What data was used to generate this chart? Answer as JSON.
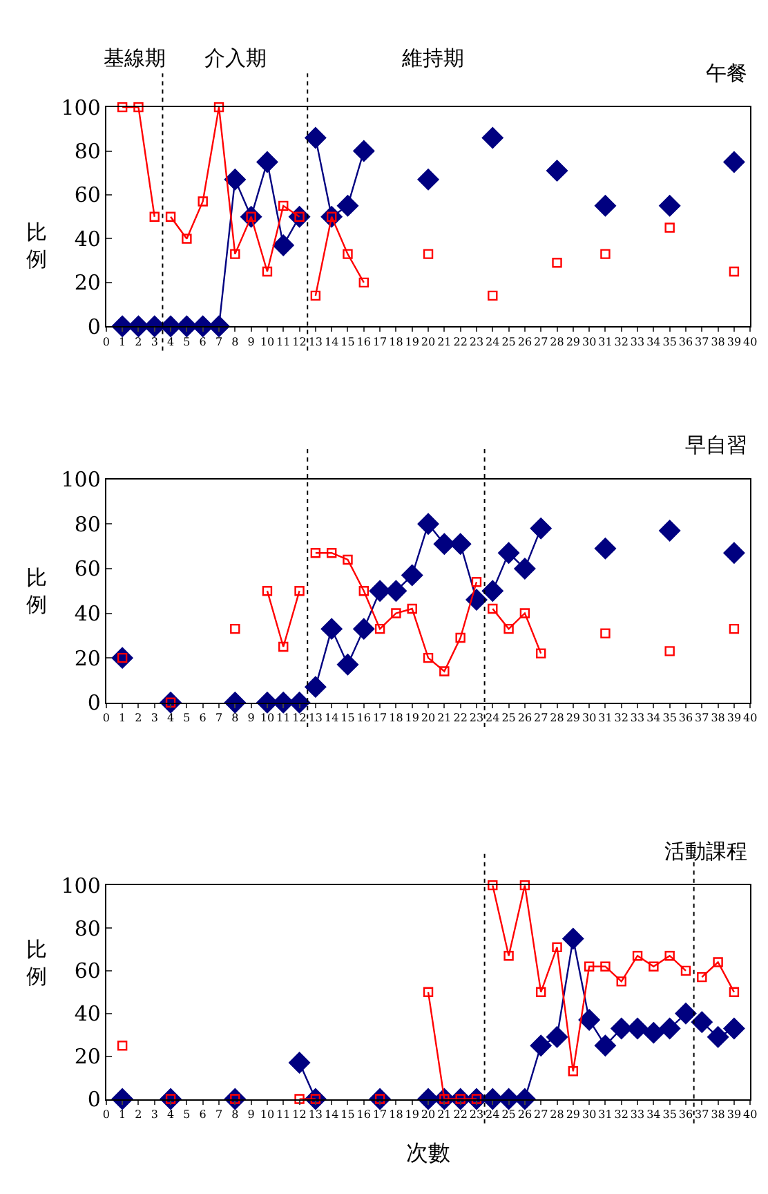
{
  "chart_data": [
    {
      "type": "line",
      "title": "午餐",
      "ylabel": "比例",
      "annotations": [
        "基線期",
        "介入期",
        "維持期"
      ],
      "xlim": [
        0,
        40
      ],
      "xticks": [
        0,
        1,
        2,
        3,
        4,
        5,
        6,
        7,
        8,
        9,
        10,
        11,
        12,
        13,
        14,
        15,
        16,
        17,
        18,
        19,
        20,
        21,
        22,
        23,
        24,
        25,
        26,
        27,
        28,
        29,
        30,
        31,
        32,
        33,
        34,
        35,
        36,
        37,
        38,
        39,
        40
      ],
      "ylim": [
        0,
        100
      ],
      "yticks": [
        0,
        20,
        40,
        60,
        80,
        100
      ],
      "line_style": "solid",
      "ref_lines": [
        {
          "axis": "x",
          "value": 3.5,
          "color": "#000000",
          "line_style": "dotted"
        },
        {
          "axis": "x",
          "value": 12.5,
          "color": "#000000",
          "line_style": "dotted"
        }
      ],
      "series": [
        {
          "color": "#ff0000",
          "marker": "square",
          "x": [
            1,
            2,
            3
          ],
          "values": [
            100,
            100,
            50
          ]
        },
        {
          "color": "#ff0000",
          "marker": "square",
          "x": [
            4,
            5,
            6,
            7,
            8,
            9,
            10,
            11,
            12
          ],
          "values": [
            50,
            40,
            57,
            100,
            33,
            50,
            25,
            55,
            50
          ]
        },
        {
          "color": "#ff0000",
          "marker": "square",
          "x": [
            13,
            14,
            15,
            16,
            17,
            18,
            19,
            20,
            21,
            22,
            23,
            24,
            25,
            26,
            27,
            28,
            29,
            30,
            31,
            32,
            33,
            34,
            35,
            36,
            37,
            38,
            39
          ],
          "values": [
            14,
            50,
            33,
            20,
            null,
            null,
            null,
            33,
            null,
            null,
            null,
            14,
            null,
            null,
            null,
            29,
            null,
            null,
            33,
            null,
            null,
            null,
            45,
            null,
            null,
            null,
            25
          ]
        },
        {
          "type": "scatter",
          "color": "#000080",
          "marker": "diamond",
          "x": [
            1,
            2,
            3
          ],
          "values": [
            0,
            0,
            0
          ]
        },
        {
          "color": "#000080",
          "marker": "diamond",
          "x": [
            4,
            5,
            6,
            7,
            8,
            9,
            10,
            11,
            12
          ],
          "values": [
            0,
            0,
            0,
            0,
            67,
            50,
            75,
            37,
            50
          ]
        },
        {
          "color": "#000080",
          "marker": "diamond",
          "x": [
            13,
            14,
            15,
            16,
            17,
            18,
            19,
            20,
            21,
            22,
            23,
            24,
            25,
            26,
            27,
            28,
            29,
            30,
            31,
            32,
            33,
            34,
            35,
            36,
            37,
            38,
            39
          ],
          "values": [
            86,
            50,
            55,
            80,
            null,
            null,
            null,
            67,
            null,
            null,
            null,
            86,
            null,
            null,
            null,
            71,
            null,
            null,
            55,
            null,
            null,
            null,
            55,
            null,
            null,
            null,
            75
          ]
        }
      ]
    },
    {
      "type": "line",
      "title": "早自習",
      "ylabel": "比例",
      "xlim": [
        0,
        40
      ],
      "xticks": [
        0,
        1,
        2,
        3,
        4,
        5,
        6,
        7,
        8,
        9,
        10,
        11,
        12,
        13,
        14,
        15,
        16,
        17,
        18,
        19,
        20,
        21,
        22,
        23,
        24,
        25,
        26,
        27,
        28,
        29,
        30,
        31,
        32,
        33,
        34,
        35,
        36,
        37,
        38,
        39,
        40
      ],
      "ylim": [
        0,
        100
      ],
      "yticks": [
        0,
        20,
        40,
        60,
        80,
        100
      ],
      "line_style": "solid",
      "ref_lines": [
        {
          "axis": "x",
          "value": 12.5,
          "color": "#000000",
          "line_style": "dotted"
        },
        {
          "axis": "x",
          "value": 23.5,
          "color": "#000000",
          "line_style": "dotted"
        }
      ],
      "series": [
        {
          "color": "#ff0000",
          "marker": "square",
          "x": [
            1,
            2,
            3,
            4,
            5,
            6,
            7,
            8,
            9,
            10,
            11,
            12
          ],
          "values": [
            20,
            null,
            null,
            0,
            null,
            null,
            null,
            33,
            null,
            50,
            25,
            50
          ]
        },
        {
          "color": "#ff0000",
          "marker": "square",
          "x": [
            13,
            14,
            15,
            16,
            17,
            18,
            19,
            20,
            21,
            22,
            23
          ],
          "values": [
            67,
            67,
            64,
            50,
            33,
            40,
            42,
            20,
            14,
            29,
            54
          ]
        },
        {
          "color": "#ff0000",
          "marker": "square",
          "x": [
            24,
            25,
            26,
            27,
            28,
            29,
            30,
            31,
            32,
            33,
            34,
            35,
            36,
            37,
            38,
            39
          ],
          "values": [
            42,
            33,
            40,
            22,
            null,
            null,
            null,
            31,
            null,
            null,
            null,
            23,
            null,
            null,
            null,
            33
          ]
        },
        {
          "type": "scatter",
          "color": "#000080",
          "marker": "diamond",
          "x": [
            1,
            2,
            3,
            4,
            5,
            6,
            7,
            8,
            9,
            10,
            11,
            12
          ],
          "values": [
            20,
            null,
            null,
            0,
            null,
            null,
            null,
            0,
            null,
            0,
            0,
            0
          ]
        },
        {
          "color": "#000080",
          "marker": "diamond",
          "x": [
            13,
            14,
            15,
            16,
            17,
            18,
            19,
            20,
            21,
            22,
            23
          ],
          "values": [
            7,
            33,
            17,
            33,
            50,
            50,
            57,
            80,
            71,
            71,
            46
          ]
        },
        {
          "color": "#000080",
          "marker": "diamond",
          "x": [
            24,
            25,
            26,
            27,
            28,
            29,
            30,
            31,
            32,
            33,
            34,
            35,
            36,
            37,
            38,
            39
          ],
          "values": [
            50,
            67,
            60,
            78,
            null,
            null,
            null,
            69,
            null,
            null,
            null,
            77,
            null,
            null,
            null,
            67
          ]
        }
      ]
    },
    {
      "type": "line",
      "title": "活動課程",
      "ylabel": "比例",
      "xlabel": "次數",
      "xlim": [
        0,
        40
      ],
      "xticks": [
        0,
        1,
        2,
        3,
        4,
        5,
        6,
        7,
        8,
        9,
        10,
        11,
        12,
        13,
        14,
        15,
        16,
        17,
        18,
        19,
        20,
        21,
        22,
        23,
        24,
        25,
        26,
        27,
        28,
        29,
        30,
        31,
        32,
        33,
        34,
        35,
        36,
        37,
        38,
        39,
        40
      ],
      "ylim": [
        0,
        100
      ],
      "yticks": [
        0,
        20,
        40,
        60,
        80,
        100
      ],
      "line_style": "solid",
      "ref_lines": [
        {
          "axis": "x",
          "value": 23.5,
          "color": "#000000",
          "line_style": "dotted"
        },
        {
          "axis": "x",
          "value": 36.5,
          "color": "#000000",
          "line_style": "dotted"
        }
      ],
      "series": [
        {
          "color": "#ff0000",
          "marker": "square",
          "x": [
            1,
            2,
            3,
            4,
            5,
            6,
            7,
            8,
            9,
            10,
            11,
            12,
            13,
            14,
            15,
            16,
            17,
            18,
            19,
            20,
            21,
            22,
            23
          ],
          "values": [
            25,
            null,
            null,
            0,
            null,
            null,
            null,
            0,
            null,
            null,
            null,
            0,
            0,
            null,
            null,
            null,
            0,
            null,
            null,
            50,
            0,
            0,
            0
          ]
        },
        {
          "color": "#ff0000",
          "marker": "square",
          "x": [
            24,
            25,
            26,
            27,
            28,
            29,
            30,
            31,
            32,
            33,
            34,
            35,
            36
          ],
          "values": [
            100,
            67,
            100,
            50,
            71,
            13,
            62,
            62,
            55,
            67,
            62,
            67,
            60
          ]
        },
        {
          "color": "#ff0000",
          "marker": "square",
          "x": [
            37,
            38,
            39
          ],
          "values": [
            57,
            64,
            50
          ]
        },
        {
          "color": "#000080",
          "marker": "diamond",
          "x": [
            1,
            2,
            3,
            4,
            5,
            6,
            7,
            8,
            9,
            10,
            11,
            12,
            13,
            14,
            15,
            16,
            17,
            18,
            19,
            20,
            21,
            22,
            23
          ],
          "values": [
            0,
            null,
            null,
            0,
            null,
            null,
            null,
            0,
            null,
            null,
            null,
            17,
            0,
            null,
            null,
            null,
            0,
            null,
            null,
            0,
            0,
            0,
            0
          ]
        },
        {
          "color": "#000080",
          "marker": "diamond",
          "x": [
            24,
            25,
            26,
            27,
            28,
            29,
            30,
            31,
            32,
            33,
            34,
            35,
            36
          ],
          "values": [
            0,
            0,
            0,
            25,
            29,
            75,
            37,
            25,
            33,
            33,
            31,
            33,
            40
          ]
        },
        {
          "color": "#000080",
          "marker": "diamond",
          "x": [
            37,
            38,
            39
          ],
          "values": [
            36,
            29,
            33
          ]
        }
      ]
    }
  ]
}
